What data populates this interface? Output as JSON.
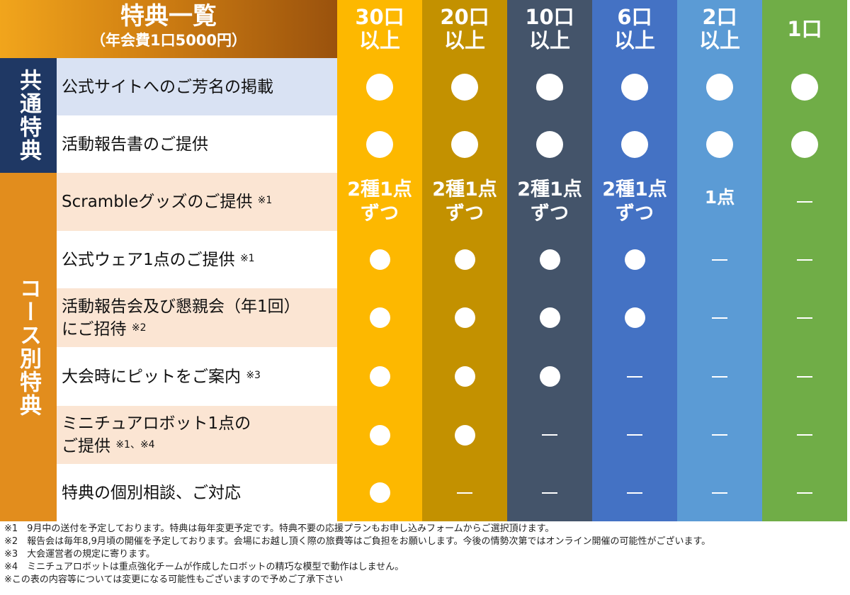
{
  "header": {
    "title": "特典一覧",
    "subtitle": "（年会費1口5000円）"
  },
  "tiers": [
    {
      "line1": "30口",
      "line2": "以上",
      "color": "#fdb800"
    },
    {
      "line1": "20口",
      "line2": "以上",
      "color": "#c39100"
    },
    {
      "line1": "10口",
      "line2": "以上",
      "color": "#44546a"
    },
    {
      "line1": "6口",
      "line2": "以上",
      "color": "#4472c4"
    },
    {
      "line1": "2口",
      "line2": "以上",
      "color": "#5b9bd5"
    },
    {
      "line1": "1口",
      "line2": "",
      "color": "#70ad47"
    }
  ],
  "sections": {
    "common": "共通特典",
    "course": "コース別特典"
  },
  "rows": [
    {
      "label": "公式サイトへのご芳名の掲載",
      "note": "",
      "cells": [
        "dot",
        "dot",
        "dot",
        "dot",
        "dot",
        "dot"
      ]
    },
    {
      "label": "活動報告書のご提供",
      "note": "",
      "cells": [
        "dot",
        "dot",
        "dot",
        "dot",
        "dot",
        "dot"
      ]
    },
    {
      "label": "Scrambleグッズのご提供",
      "note": "※1",
      "cells": [
        "2種1点ずつ",
        "2種1点ずつ",
        "2種1点ずつ",
        "2種1点ずつ",
        "1点",
        "dash"
      ]
    },
    {
      "label": "公式ウェア1点のご提供",
      "note": "※1",
      "cells": [
        "dot",
        "dot",
        "dot",
        "dot",
        "dash",
        "dash"
      ]
    },
    {
      "label": "活動報告会及び懇親会（年1回）",
      "label2": "にご招待",
      "note": "※2",
      "cells": [
        "dot",
        "dot",
        "dot",
        "dot",
        "dash",
        "dash"
      ]
    },
    {
      "label": "大会時にピットをご案内",
      "note": "※3",
      "cells": [
        "dot",
        "dot",
        "dot",
        "dash",
        "dash",
        "dash"
      ]
    },
    {
      "label": "ミニチュアロボット1点の",
      "label2": "ご提供",
      "note": "※1、※4",
      "cells": [
        "dot",
        "dot",
        "dash",
        "dash",
        "dash",
        "dash"
      ]
    },
    {
      "label": "特典の個別相談、ご対応",
      "note": "",
      "cells": [
        "dot",
        "dash",
        "dash",
        "dash",
        "dash",
        "dash"
      ]
    }
  ],
  "footnotes": [
    "※1　9月中の送付を予定しております。特典は毎年変更予定です。特典不要の応援プランもお申し込みフォームからご選択頂けます。",
    "※2　報告会は毎年8,9月頃の開催を予定しております。会場にお越し頂く際の旅費等はご負担をお願いします。今後の情勢次第ではオンライン開催の可能性がございます。",
    "※3　大会運営者の規定に寄ります。",
    "※4　ミニチュアロボットは重点強化チームが作成したロボットの精巧な模型で動作はしません。",
    "※この表の内容等については変更になる可能性もございますので予めご了承下さい"
  ]
}
